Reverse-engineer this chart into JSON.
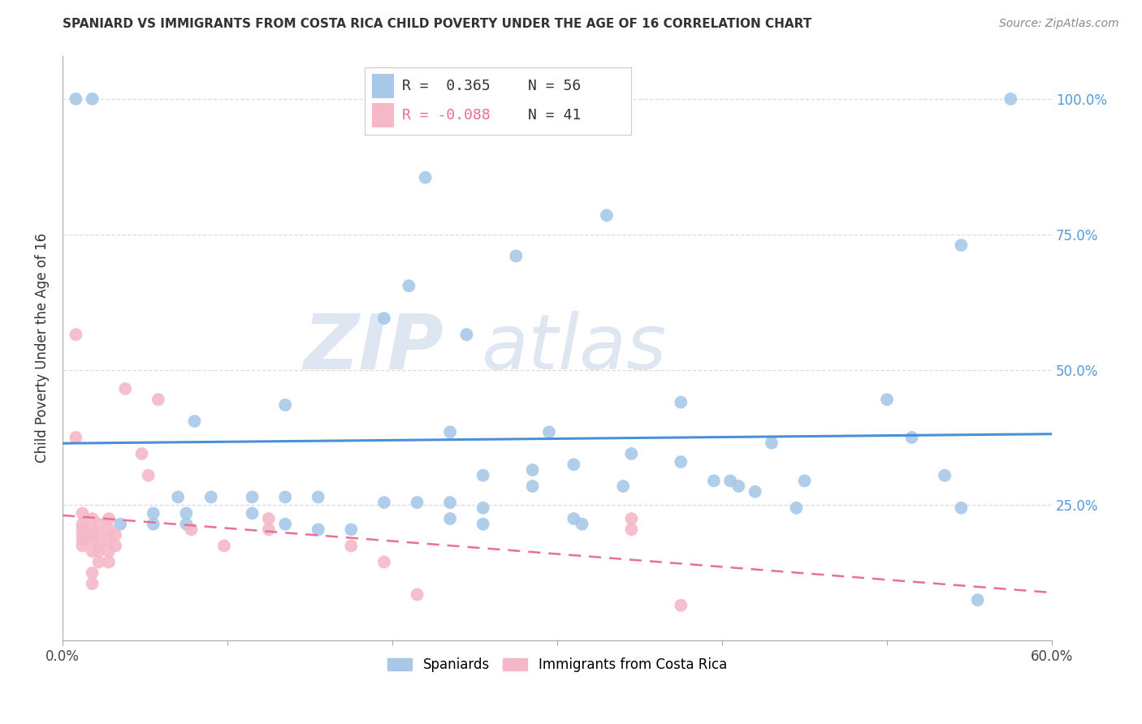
{
  "title": "SPANIARD VS IMMIGRANTS FROM COSTA RICA CHILD POVERTY UNDER THE AGE OF 16 CORRELATION CHART",
  "source": "Source: ZipAtlas.com",
  "ylabel": "Child Poverty Under the Age of 16",
  "ytick_labels": [
    "100.0%",
    "75.0%",
    "50.0%",
    "25.0%"
  ],
  "ytick_values": [
    1.0,
    0.75,
    0.5,
    0.25
  ],
  "xlim": [
    0.0,
    0.6
  ],
  "ylim": [
    0.0,
    1.08
  ],
  "legend_blue_r": "R =  0.365",
  "legend_blue_n": "N = 56",
  "legend_pink_r": "R = -0.088",
  "legend_pink_n": "N = 41",
  "blue_color": "#a8c8e8",
  "pink_color": "#f5b8c8",
  "blue_line_color": "#4a90d9",
  "pink_line_color": "#e87090",
  "blue_scatter": [
    [
      0.008,
      1.0
    ],
    [
      0.018,
      1.0
    ],
    [
      0.22,
      0.855
    ],
    [
      0.33,
      0.785
    ],
    [
      0.275,
      0.71
    ],
    [
      0.21,
      0.655
    ],
    [
      0.195,
      0.595
    ],
    [
      0.245,
      0.565
    ],
    [
      0.5,
      0.445
    ],
    [
      0.375,
      0.44
    ],
    [
      0.135,
      0.435
    ],
    [
      0.08,
      0.405
    ],
    [
      0.235,
      0.385
    ],
    [
      0.295,
      0.385
    ],
    [
      0.43,
      0.365
    ],
    [
      0.345,
      0.345
    ],
    [
      0.375,
      0.33
    ],
    [
      0.31,
      0.325
    ],
    [
      0.285,
      0.315
    ],
    [
      0.255,
      0.305
    ],
    [
      0.395,
      0.295
    ],
    [
      0.405,
      0.295
    ],
    [
      0.45,
      0.295
    ],
    [
      0.285,
      0.285
    ],
    [
      0.34,
      0.285
    ],
    [
      0.41,
      0.285
    ],
    [
      0.42,
      0.275
    ],
    [
      0.07,
      0.265
    ],
    [
      0.09,
      0.265
    ],
    [
      0.115,
      0.265
    ],
    [
      0.135,
      0.265
    ],
    [
      0.155,
      0.265
    ],
    [
      0.195,
      0.255
    ],
    [
      0.215,
      0.255
    ],
    [
      0.235,
      0.255
    ],
    [
      0.255,
      0.245
    ],
    [
      0.445,
      0.245
    ],
    [
      0.055,
      0.235
    ],
    [
      0.075,
      0.235
    ],
    [
      0.115,
      0.235
    ],
    [
      0.235,
      0.225
    ],
    [
      0.31,
      0.225
    ],
    [
      0.035,
      0.215
    ],
    [
      0.055,
      0.215
    ],
    [
      0.075,
      0.215
    ],
    [
      0.135,
      0.215
    ],
    [
      0.255,
      0.215
    ],
    [
      0.315,
      0.215
    ],
    [
      0.155,
      0.205
    ],
    [
      0.175,
      0.205
    ],
    [
      0.515,
      0.375
    ],
    [
      0.545,
      0.73
    ],
    [
      0.535,
      0.305
    ],
    [
      0.545,
      0.245
    ],
    [
      0.555,
      0.075
    ],
    [
      0.575,
      1.0
    ]
  ],
  "pink_scatter": [
    [
      0.008,
      0.565
    ],
    [
      0.008,
      0.375
    ],
    [
      0.012,
      0.235
    ],
    [
      0.012,
      0.215
    ],
    [
      0.012,
      0.205
    ],
    [
      0.012,
      0.195
    ],
    [
      0.012,
      0.185
    ],
    [
      0.012,
      0.175
    ],
    [
      0.018,
      0.225
    ],
    [
      0.018,
      0.205
    ],
    [
      0.018,
      0.195
    ],
    [
      0.018,
      0.185
    ],
    [
      0.018,
      0.165
    ],
    [
      0.018,
      0.125
    ],
    [
      0.018,
      0.105
    ],
    [
      0.022,
      0.215
    ],
    [
      0.022,
      0.195
    ],
    [
      0.022,
      0.175
    ],
    [
      0.022,
      0.165
    ],
    [
      0.022,
      0.145
    ],
    [
      0.028,
      0.225
    ],
    [
      0.028,
      0.205
    ],
    [
      0.028,
      0.185
    ],
    [
      0.028,
      0.165
    ],
    [
      0.028,
      0.145
    ],
    [
      0.032,
      0.195
    ],
    [
      0.032,
      0.175
    ],
    [
      0.038,
      0.465
    ],
    [
      0.058,
      0.445
    ],
    [
      0.125,
      0.225
    ],
    [
      0.125,
      0.205
    ],
    [
      0.175,
      0.175
    ],
    [
      0.195,
      0.145
    ],
    [
      0.215,
      0.085
    ],
    [
      0.345,
      0.225
    ],
    [
      0.345,
      0.205
    ],
    [
      0.375,
      0.065
    ],
    [
      0.048,
      0.345
    ],
    [
      0.052,
      0.305
    ],
    [
      0.078,
      0.205
    ],
    [
      0.098,
      0.175
    ]
  ],
  "watermark_zip": "ZIP",
  "watermark_atlas": "atlas",
  "background_color": "#ffffff",
  "grid_color": "#dddddd"
}
